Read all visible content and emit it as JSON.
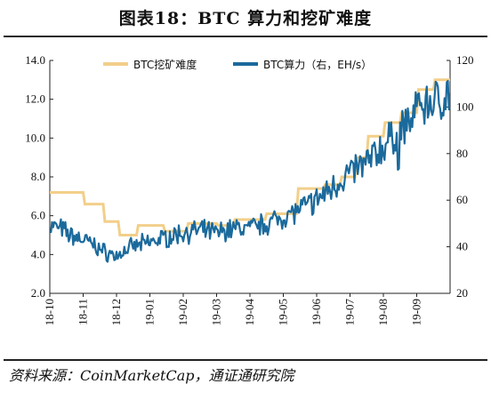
{
  "title": "图表18：BTC 算力和挖矿难度",
  "source": "资料来源：CoinMarketCap，通证通研究院",
  "chart_data": {
    "type": "line",
    "x_ticks": [
      "18-10",
      "18-11",
      "18-12",
      "19-01",
      "19-02",
      "19-03",
      "19-04",
      "19-05",
      "19-06",
      "19-07",
      "19-08",
      "19-09"
    ],
    "x_range": [
      0,
      12
    ],
    "y_left": {
      "ticks": [
        "2.0",
        "4.0",
        "6.0",
        "8.0",
        "10.0",
        "12.0",
        "14.0"
      ],
      "range": [
        2,
        14
      ]
    },
    "y_right": {
      "ticks": [
        "20",
        "40",
        "60",
        "80",
        "100",
        "120"
      ],
      "range": [
        20,
        120
      ]
    },
    "grid": false,
    "legend_position": "top",
    "series": [
      {
        "name": "BTC挖矿难度",
        "axis": "left",
        "color": "#f2cf8a",
        "step": true,
        "points": [
          [
            0,
            7.2
          ],
          [
            1.0,
            7.2
          ],
          [
            1.05,
            6.6
          ],
          [
            1.6,
            6.6
          ],
          [
            1.65,
            5.7
          ],
          [
            2.05,
            5.7
          ],
          [
            2.1,
            5.0
          ],
          [
            2.6,
            5.0
          ],
          [
            2.65,
            5.5
          ],
          [
            3.4,
            5.5
          ],
          [
            3.45,
            5.2
          ],
          [
            4.1,
            5.2
          ],
          [
            4.15,
            5.6
          ],
          [
            5.0,
            5.6
          ],
          [
            5.05,
            5.5
          ],
          [
            5.5,
            5.5
          ],
          [
            5.55,
            5.8
          ],
          [
            6.45,
            5.8
          ],
          [
            6.5,
            6.1
          ],
          [
            7.4,
            6.1
          ],
          [
            7.45,
            7.4
          ],
          [
            8.2,
            7.4
          ],
          [
            8.25,
            7.6
          ],
          [
            8.7,
            7.6
          ],
          [
            8.75,
            8.0
          ],
          [
            9.15,
            8.0
          ],
          [
            9.2,
            9.0
          ],
          [
            9.5,
            9.0
          ],
          [
            9.55,
            10.1
          ],
          [
            10.0,
            10.1
          ],
          [
            10.05,
            10.8
          ],
          [
            10.5,
            10.8
          ],
          [
            10.55,
            11.3
          ],
          [
            11.0,
            11.3
          ],
          [
            11.05,
            12.5
          ],
          [
            11.5,
            12.5
          ],
          [
            11.55,
            13.0
          ],
          [
            12.0,
            13.0
          ]
        ]
      },
      {
        "name": "BTC算力（右，EH/s）",
        "axis": "right",
        "color": "#1b6a9c",
        "step": false,
        "anchors": [
          [
            0,
            49
          ],
          [
            0.3,
            48
          ],
          [
            0.6,
            45
          ],
          [
            1.0,
            43
          ],
          [
            1.3,
            41
          ],
          [
            1.6,
            38
          ],
          [
            2.0,
            36
          ],
          [
            2.2,
            38
          ],
          [
            2.5,
            40
          ],
          [
            3.0,
            42
          ],
          [
            3.5,
            44
          ],
          [
            4.0,
            46
          ],
          [
            4.5,
            47
          ],
          [
            5.0,
            46
          ],
          [
            5.5,
            48
          ],
          [
            6.0,
            48
          ],
          [
            6.5,
            50
          ],
          [
            7.0,
            53
          ],
          [
            7.5,
            56
          ],
          [
            8.0,
            60
          ],
          [
            8.5,
            66
          ],
          [
            9.0,
            72
          ],
          [
            9.5,
            76
          ],
          [
            10.0,
            83
          ],
          [
            10.5,
            90
          ],
          [
            11.0,
            97
          ],
          [
            11.3,
            101
          ],
          [
            11.6,
            103
          ],
          [
            12.0,
            106
          ]
        ]
      }
    ]
  }
}
